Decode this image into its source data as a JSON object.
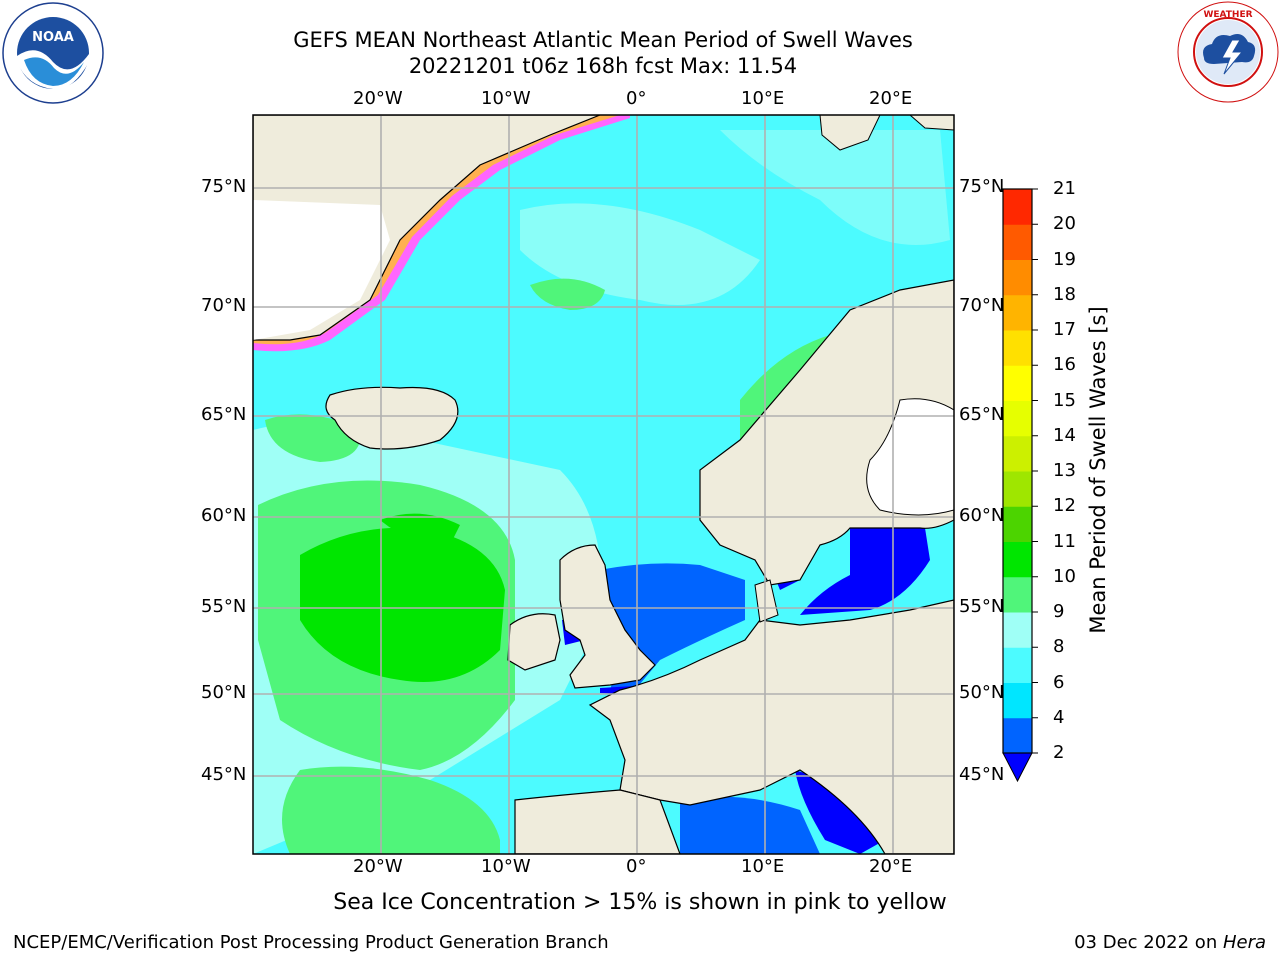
{
  "title": {
    "line1": "GEFS MEAN Northeast Atlantic Mean Period of Swell Waves",
    "line2": "20221201 t06z 168h fcst   Max: 11.54"
  },
  "logos": {
    "left": "NOAA",
    "right": "NATIONAL WEATHER SERVICE"
  },
  "map": {
    "lon_ticks": [
      "20°W",
      "10°W",
      "0°",
      "10°E",
      "20°E"
    ],
    "lat_ticks": [
      "75°N",
      "70°N",
      "65°N",
      "60°N",
      "55°N",
      "50°N",
      "45°N"
    ],
    "colors": {
      "land": "#efecdc",
      "gridline": "#b0b0b0",
      "coast": "#000000",
      "ice_pink": "#ff66ff",
      "ice_orange": "#ffb050",
      "ice_yellow": "#ffff66"
    }
  },
  "colorbar": {
    "label": "Mean Period of Swell Waves [s]",
    "ticks": [
      "2",
      "4",
      "6",
      "8",
      "9",
      "10",
      "11",
      "12",
      "13",
      "14",
      "15",
      "16",
      "17",
      "18",
      "19",
      "20",
      "21"
    ],
    "colors": [
      "#0064ff",
      "#00e6ff",
      "#4cfbff",
      "#9ffff6",
      "#50f57a",
      "#00e600",
      "#4cd400",
      "#9fe600",
      "#ccf000",
      "#e6ff00",
      "#ffff00",
      "#ffe000",
      "#ffb400",
      "#ff8c00",
      "#ff5a00",
      "#ff2800",
      "#ff0000"
    ],
    "under_color": "#0000ff"
  },
  "footer": {
    "ice_note": "Sea Ice Concentration > 15% is shown in pink to yellow",
    "left": "NCEP/EMC/Verification Post Processing Product Generation Branch",
    "date": "03 Dec 2022 on ",
    "host": "Hera"
  }
}
